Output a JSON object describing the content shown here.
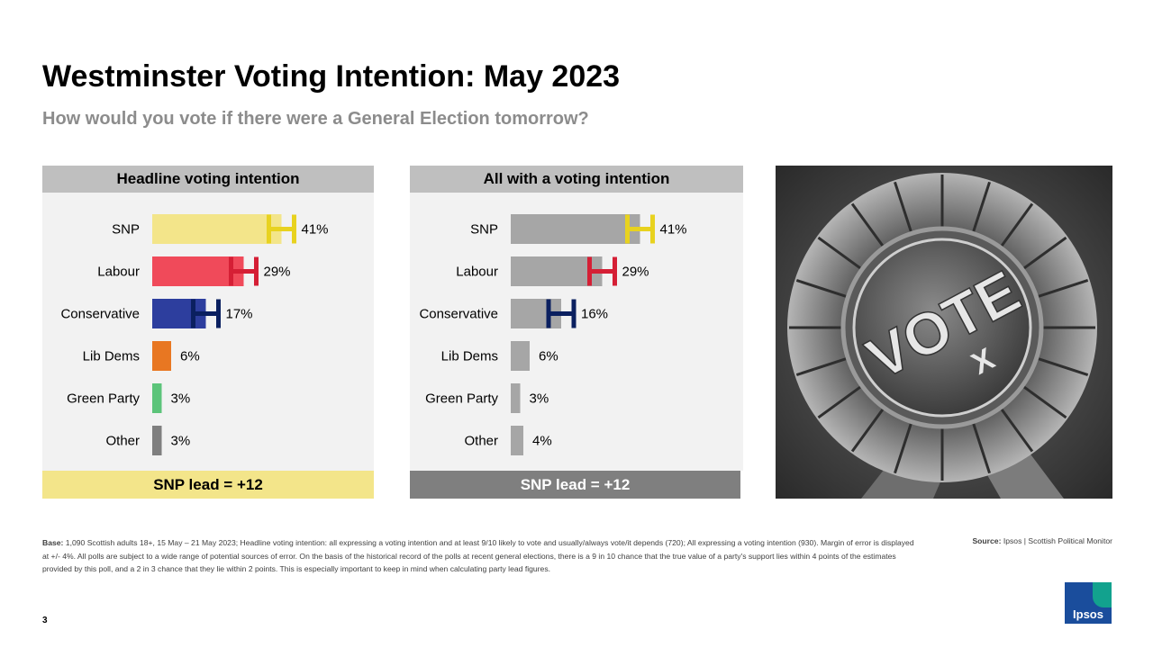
{
  "title": "Westminster Voting Intention: May 2023",
  "subtitle": "How would you vote if there were a General Election tomorrow?",
  "chart_data": [
    {
      "type": "bar",
      "orientation": "horizontal",
      "title": "Headline voting intention",
      "categories": [
        "SNP",
        "Labour",
        "Conservative",
        "Lib Dems",
        "Green Party",
        "Other"
      ],
      "values": [
        41,
        29,
        17,
        6,
        3,
        3
      ],
      "value_labels": [
        "41%",
        "29%",
        "17%",
        "6%",
        "3%",
        "3%"
      ],
      "margin_of_error": 4,
      "error_bars_on": [
        "SNP",
        "Labour",
        "Conservative"
      ],
      "colors": [
        "#f3e58a",
        "#f04a5a",
        "#2d3e9e",
        "#e87722",
        "#5cc47a",
        "#7f7f7f"
      ],
      "error_colors": [
        "#e8d21f",
        "#d51f35",
        "#0b2060"
      ],
      "lead_text": "SNP lead = +12",
      "lead_color": "#f3e58a"
    },
    {
      "type": "bar",
      "orientation": "horizontal",
      "title": "All with a voting intention",
      "categories": [
        "SNP",
        "Labour",
        "Conservative",
        "Lib Dems",
        "Green Party",
        "Other"
      ],
      "values": [
        41,
        29,
        16,
        6,
        3,
        4
      ],
      "value_labels": [
        "41%",
        "29%",
        "16%",
        "6%",
        "3%",
        "4%"
      ],
      "margin_of_error": 4,
      "error_bars_on": [
        "SNP",
        "Labour",
        "Conservative"
      ],
      "colors": [
        "#a6a6a6",
        "#a6a6a6",
        "#a6a6a6",
        "#a6a6a6",
        "#a6a6a6",
        "#a6a6a6"
      ],
      "error_colors": [
        "#e8d21f",
        "#d51f35",
        "#0b2060"
      ],
      "lead_text": "SNP lead = +12",
      "lead_color": "#7f7f7f"
    }
  ],
  "photo": {
    "badge_text": "VOTE",
    "mark": "X"
  },
  "notes": {
    "base_label": "Base:",
    "base_text": "1,090 Scottish adults 18+, 15 May – 21 May 2023; Headline voting intention: all expressing a voting intention and at least 9/10 likely to vote and usually/always vote/it depends (720); All expressing a voting intention (930). Margin of error is displayed at +/- 4%. All polls are subject to a wide range of potential sources of error. On the basis of the historical record of the polls at recent general elections, there is a 9 in 10 chance that the true value of a party's support lies within 4 points of the estimates provided by this poll, and a 2 in 3 chance that they lie within 2 points. This is especially important to keep in mind when calculating party lead figures.",
    "source_label": "Source:",
    "source_text": "Ipsos | Scottish Political Monitor"
  },
  "page_number": "3",
  "logo_text": "Ipsos"
}
